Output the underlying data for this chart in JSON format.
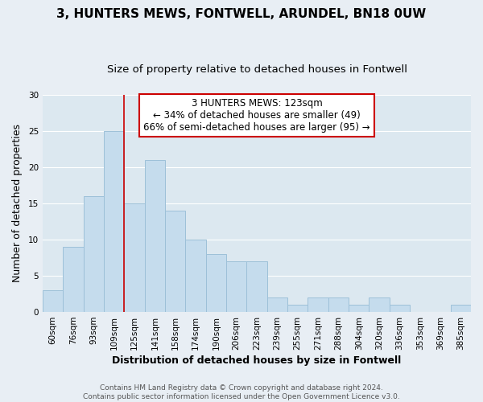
{
  "title": "3, HUNTERS MEWS, FONTWELL, ARUNDEL, BN18 0UW",
  "subtitle": "Size of property relative to detached houses in Fontwell",
  "xlabel": "Distribution of detached houses by size in Fontwell",
  "ylabel": "Number of detached properties",
  "bar_labels": [
    "60sqm",
    "76sqm",
    "93sqm",
    "109sqm",
    "125sqm",
    "141sqm",
    "158sqm",
    "174sqm",
    "190sqm",
    "206sqm",
    "223sqm",
    "239sqm",
    "255sqm",
    "271sqm",
    "288sqm",
    "304sqm",
    "320sqm",
    "336sqm",
    "353sqm",
    "369sqm",
    "385sqm"
  ],
  "bar_values": [
    3,
    9,
    16,
    25,
    15,
    21,
    14,
    10,
    8,
    7,
    7,
    2,
    1,
    2,
    2,
    1,
    2,
    1,
    0,
    0,
    1
  ],
  "bar_color": "#c5dced",
  "bar_edge_color": "#9dc0d8",
  "vline_index": 3.5,
  "vline_color": "#cc0000",
  "annotation_title": "3 HUNTERS MEWS: 123sqm",
  "annotation_line1": "← 34% of detached houses are smaller (49)",
  "annotation_line2": "66% of semi-detached houses are larger (95) →",
  "annotation_box_facecolor": "#ffffff",
  "annotation_box_edgecolor": "#cc0000",
  "ylim": [
    0,
    30
  ],
  "yticks": [
    0,
    5,
    10,
    15,
    20,
    25,
    30
  ],
  "footer1": "Contains HM Land Registry data © Crown copyright and database right 2024.",
  "footer2": "Contains public sector information licensed under the Open Government Licence v3.0.",
  "fig_facecolor": "#e8eef4",
  "plot_facecolor": "#dce8f0",
  "grid_color": "#ffffff",
  "title_fontsize": 11,
  "subtitle_fontsize": 9.5,
  "axis_label_fontsize": 9,
  "tick_fontsize": 7.5,
  "annotation_fontsize": 8.5,
  "footer_fontsize": 6.5
}
